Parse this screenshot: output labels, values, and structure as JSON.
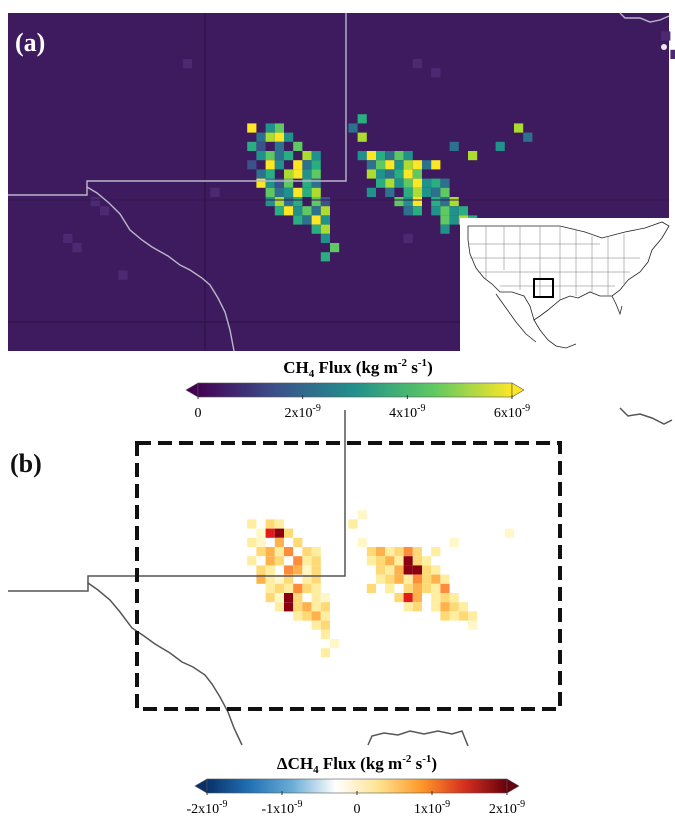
{
  "panels": {
    "a": {
      "label": "(a)",
      "colorbar": {
        "title_prefix": "CH",
        "title_sub": "4",
        "title_suffix": " Flux (kg m",
        "title_exp": "-2",
        "title_tail": " s",
        "title_exp2": "-1",
        "title_close": ")",
        "colormap": [
          "#440154",
          "#3b528b",
          "#21918c",
          "#5ec962",
          "#fde725"
        ],
        "ticks": [
          {
            "value": 0,
            "base": "0",
            "exp": ""
          },
          {
            "value": 2e-09,
            "base": "2x10",
            "exp": "-9"
          },
          {
            "value": 4e-09,
            "base": "4x10",
            "exp": "-9"
          },
          {
            "value": 6e-09,
            "base": "6x10",
            "exp": "-9"
          }
        ],
        "range": [
          0,
          6e-09
        ],
        "extend": "both"
      },
      "background_color": "#3e1b5e"
    },
    "b": {
      "label": "(b)",
      "colorbar": {
        "title_prefix": "ΔCH",
        "title_sub": "4",
        "title_suffix": " Flux (kg m",
        "title_exp": "-2",
        "title_tail": " s",
        "title_exp2": "-1",
        "title_close": ")",
        "colormap": [
          "#08306b",
          "#2171b5",
          "#6baed6",
          "#ffffff",
          "#fee391",
          "#fe9929",
          "#d7301f",
          "#67000d"
        ],
        "ticks": [
          {
            "value": -2e-09,
            "base": "-2x10",
            "exp": "-9"
          },
          {
            "value": -1e-09,
            "base": "-1x10",
            "exp": "-9"
          },
          {
            "value": 0,
            "base": "0",
            "exp": ""
          },
          {
            "value": 1e-09,
            "base": "1x10",
            "exp": "-9"
          },
          {
            "value": 2e-09,
            "base": "2x10",
            "exp": "-9"
          }
        ],
        "range": [
          -2e-09,
          2e-09
        ],
        "extend": "both"
      }
    }
  }
}
